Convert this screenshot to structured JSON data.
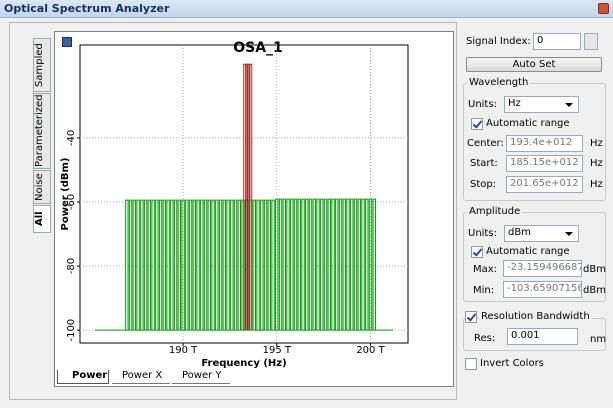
{
  "window": {
    "title": "Optical Spectrum Analyzer"
  },
  "side_tabs": [
    "Sampled",
    "Parameterized",
    "Noise",
    "All"
  ],
  "chart_data": {
    "type": "stem",
    "title": "OSA_1",
    "x_label": "Frequency (Hz)",
    "y_label": "Power (dBm)",
    "grid": true,
    "xlim": [
      184.5,
      202
    ],
    "ylim": [
      -104,
      -11
    ],
    "xticks": [
      {
        "value": 190,
        "label": "190 T"
      },
      {
        "value": 195,
        "label": "195 T"
      },
      {
        "value": 200,
        "label": "200 T"
      }
    ],
    "yticks": [
      -100,
      -80,
      -60,
      -40
    ],
    "series": [
      {
        "style": "line",
        "color": "#00a000",
        "x": [
          185.3,
          201.2
        ],
        "values": [
          -100,
          -100
        ]
      },
      {
        "color": "#00a000",
        "x": [
          187.0,
          187.2,
          187.4,
          187.6,
          187.8,
          188.0,
          188.2,
          188.4,
          188.6,
          188.8,
          189.0,
          189.2,
          189.4,
          189.6,
          189.8,
          190.0,
          190.2,
          190.4,
          190.6,
          190.8,
          191.0,
          191.2,
          191.4,
          191.6,
          191.8,
          192.0,
          192.2,
          192.4,
          192.6,
          192.8,
          193.0,
          193.2,
          193.4,
          193.6,
          193.8,
          194.0,
          194.2,
          194.4,
          194.6,
          194.8,
          195.0,
          195.2,
          195.4,
          195.6,
          195.8,
          196.0,
          196.2,
          196.4,
          196.6,
          196.8,
          197.0,
          197.2,
          197.4,
          197.6,
          197.8,
          198.0,
          198.2,
          198.4,
          198.6,
          198.8,
          199.0,
          199.2,
          199.4,
          199.6,
          199.8,
          200.0,
          200.2
        ],
        "values": [
          -59.4,
          -59.4,
          -59.4,
          -59.4,
          -59.4,
          -59.4,
          -59.4,
          -59.4,
          -59.4,
          -59.4,
          -59.4,
          -59.4,
          -59.4,
          -59.4,
          -59.4,
          -59.4,
          -59.4,
          -59.4,
          -59.4,
          -59.4,
          -59.4,
          -59.4,
          -59.4,
          -59.4,
          -59.4,
          -59.4,
          -59.4,
          -59.4,
          -59.4,
          -59.4,
          -59.4,
          -59.4,
          -59.4,
          -59.4,
          -59.4,
          -59.4,
          -59.4,
          -59.4,
          -59.4,
          -59.4,
          -59.1,
          -59.1,
          -59.1,
          -59.1,
          -59.1,
          -59.1,
          -59.1,
          -59.1,
          -59.1,
          -59.1,
          -59.1,
          -59.1,
          -59.1,
          -59.1,
          -59.1,
          -59.1,
          -59.1,
          -59.1,
          -59.1,
          -59.1,
          -59.1,
          -59.1,
          -59.1,
          -59.1,
          -59.1,
          -59.1,
          -59.1
        ]
      },
      {
        "color": "#a0302a",
        "x": [
          193.3,
          193.4,
          193.5,
          193.6
        ],
        "values": [
          -17,
          -17,
          -17,
          -17
        ]
      },
      {
        "color": "#3a4a10",
        "x": [
          193.4
        ],
        "values": [
          -59.4
        ]
      }
    ]
  },
  "bottom_tabs": [
    "Power",
    "Power X",
    "Power Y"
  ],
  "panel": {
    "signal_index_label": "Signal Index:",
    "signal_index": "0",
    "auto_set": "Auto Set",
    "wavelength": {
      "title": "Wavelength",
      "units_label": "Units:",
      "units": "Hz",
      "auto_range": "Automatic range",
      "center_label": "Center:",
      "center": "193.4e+012",
      "center_unit": "Hz",
      "start_label": "Start:",
      "start": "185.15e+012",
      "start_unit": "Hz",
      "stop_label": "Stop:",
      "stop": "201.65e+012",
      "stop_unit": "Hz"
    },
    "amplitude": {
      "title": "Amplitude",
      "units_label": "Units:",
      "units": "dBm",
      "auto_range": "Automatic range",
      "max_label": "Max:",
      "max": "-23.159496687",
      "max_unit": "dBm",
      "min_label": "Min:",
      "min": "-103.65907156",
      "min_unit": "dBm"
    },
    "resolution": {
      "title": "Resolution Bandwidth",
      "res_label": "Res:",
      "res": "0.001",
      "res_unit": "nm"
    },
    "invert": "Invert Colors"
  }
}
